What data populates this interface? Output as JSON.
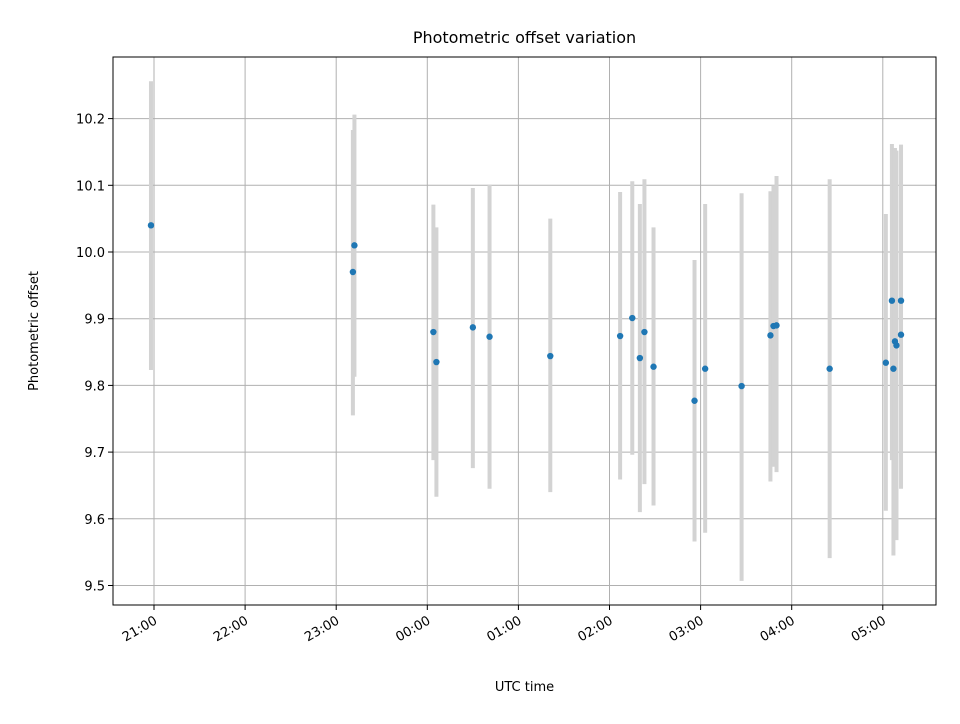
{
  "chart_data": {
    "type": "scatter",
    "title": "Photometric offset variation",
    "xlabel": "UTC time",
    "ylabel": "Photometric offset",
    "x_tick_labels": [
      "21:00",
      "22:00",
      "23:00",
      "00:00",
      "01:00",
      "02:00",
      "03:00",
      "04:00",
      "05:00"
    ],
    "y_tick_labels": [
      "9.5",
      "9.6",
      "9.7",
      "9.8",
      "9.9",
      "10.0",
      "10.1",
      "10.2"
    ],
    "grid": true,
    "colors": {
      "marker": "#1f77b4",
      "errorbar": "#d3d3d3",
      "grid": "#b0b0b0"
    },
    "points": [
      {
        "t": "20:58",
        "y": 10.04,
        "ylo": 9.823,
        "yhi": 10.256
      },
      {
        "t": "23:11",
        "y": 9.97,
        "ylo": 9.755,
        "yhi": 10.183
      },
      {
        "t": "23:12",
        "y": 10.01,
        "ylo": 9.813,
        "yhi": 10.206
      },
      {
        "t": "00:04",
        "y": 9.88,
        "ylo": 9.688,
        "yhi": 10.071
      },
      {
        "t": "00:06",
        "y": 9.835,
        "ylo": 9.633,
        "yhi": 10.037
      },
      {
        "t": "00:30",
        "y": 9.887,
        "ylo": 9.676,
        "yhi": 10.096
      },
      {
        "t": "00:41",
        "y": 9.873,
        "ylo": 9.645,
        "yhi": 10.101
      },
      {
        "t": "01:21",
        "y": 9.844,
        "ylo": 9.64,
        "yhi": 10.05
      },
      {
        "t": "02:07",
        "y": 9.874,
        "ylo": 9.659,
        "yhi": 10.09
      },
      {
        "t": "02:15",
        "y": 9.901,
        "ylo": 9.696,
        "yhi": 10.106
      },
      {
        "t": "02:20",
        "y": 9.841,
        "ylo": 9.61,
        "yhi": 10.072
      },
      {
        "t": "02:23",
        "y": 9.88,
        "ylo": 9.652,
        "yhi": 10.109
      },
      {
        "t": "02:29",
        "y": 9.828,
        "ylo": 9.62,
        "yhi": 10.037
      },
      {
        "t": "02:56",
        "y": 9.777,
        "ylo": 9.566,
        "yhi": 9.988
      },
      {
        "t": "03:03",
        "y": 9.825,
        "ylo": 9.579,
        "yhi": 10.072
      },
      {
        "t": "03:27",
        "y": 9.799,
        "ylo": 9.507,
        "yhi": 10.088
      },
      {
        "t": "03:46",
        "y": 9.875,
        "ylo": 9.656,
        "yhi": 10.091
      },
      {
        "t": "03:48",
        "y": 9.889,
        "ylo": 9.678,
        "yhi": 10.1
      },
      {
        "t": "03:50",
        "y": 9.89,
        "ylo": 9.67,
        "yhi": 10.114
      },
      {
        "t": "04:25",
        "y": 9.825,
        "ylo": 9.541,
        "yhi": 10.109
      },
      {
        "t": "05:02",
        "y": 9.834,
        "ylo": 9.612,
        "yhi": 10.057
      },
      {
        "t": "05:06",
        "y": 9.927,
        "ylo": 9.688,
        "yhi": 10.162
      },
      {
        "t": "05:07",
        "y": 9.825,
        "ylo": 9.545,
        "yhi": 10.103
      },
      {
        "t": "05:08",
        "y": 9.866,
        "ylo": 9.57,
        "yhi": 10.156
      },
      {
        "t": "05:09",
        "y": 9.86,
        "ylo": 9.568,
        "yhi": 10.152
      },
      {
        "t": "05:12",
        "y": 9.927,
        "ylo": 9.693,
        "yhi": 10.161
      },
      {
        "t": "05:12",
        "y": 9.876,
        "ylo": 9.645,
        "yhi": 10.106
      }
    ]
  }
}
